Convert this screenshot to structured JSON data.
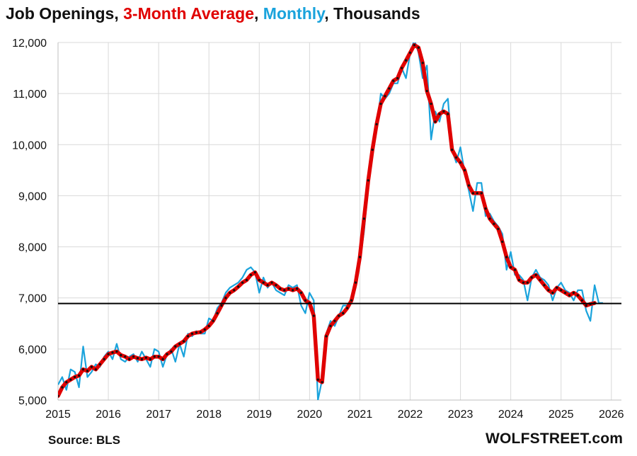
{
  "title": {
    "part1": "Job Openings, ",
    "part2": "3-Month Average",
    "part3": ", ",
    "part4": "Monthly",
    "part5": ", Thousands"
  },
  "footer": {
    "source": "Source: BLS",
    "brand": "WOLFSTREET.com"
  },
  "colors": {
    "average": "#e00000",
    "monthly": "#1aa3dc",
    "reference_line": "#000000",
    "grid": "#d9d9d9"
  },
  "chart_data": {
    "type": "line",
    "title": "Job Openings, 3-Month Average, Monthly, Thousands",
    "xlabel": "",
    "ylabel": "",
    "xlim": [
      2015,
      2026.2
    ],
    "ylim": [
      5000,
      12000
    ],
    "y_ticks": [
      5000,
      6000,
      7000,
      8000,
      9000,
      10000,
      11000,
      12000
    ],
    "y_tick_labels": [
      "5,000",
      "6,000",
      "7,000",
      "8,000",
      "9,000",
      "10,000",
      "11,000",
      "12,000"
    ],
    "x_ticks": [
      2015,
      2016,
      2017,
      2018,
      2019,
      2020,
      2021,
      2022,
      2023,
      2024,
      2025,
      2026
    ],
    "x_tick_labels": [
      "2015",
      "2016",
      "2017",
      "2018",
      "2019",
      "2020",
      "2021",
      "2022",
      "2023",
      "2024",
      "2025",
      "2026"
    ],
    "grid": true,
    "legend": "in title",
    "reference_line": {
      "y": 6890
    },
    "series": [
      {
        "name": "Monthly",
        "color": "#1aa3dc",
        "x_start": 2015.0,
        "x_step": 0.08333,
        "values": [
          5300,
          5450,
          5200,
          5600,
          5550,
          5250,
          6050,
          5450,
          5550,
          5700,
          5650,
          5850,
          5950,
          5800,
          6100,
          5800,
          5750,
          5850,
          5900,
          5750,
          5950,
          5800,
          5650,
          6000,
          5950,
          5650,
          5900,
          6000,
          5750,
          6100,
          5850,
          6300,
          6250,
          6350,
          6300,
          6300,
          6600,
          6550,
          6800,
          6900,
          7100,
          7200,
          7250,
          7300,
          7400,
          7550,
          7600,
          7500,
          7100,
          7400,
          7200,
          7300,
          7150,
          7100,
          7050,
          7250,
          7200,
          7250,
          6850,
          6700,
          7100,
          6950,
          5000,
          5400,
          6300,
          6550,
          6450,
          6650,
          6850,
          6850,
          6900,
          7200,
          7700,
          8300,
          9200,
          10000,
          10300,
          11000,
          10900,
          11000,
          11200,
          11200,
          11500,
          11300,
          11800,
          12050,
          11800,
          11300,
          11550,
          10100,
          10650,
          10450,
          10800,
          10900,
          9900,
          9650,
          9950,
          9450,
          9100,
          8700,
          9250,
          9250,
          8600,
          8650,
          8500,
          8400,
          8250,
          7550,
          7900,
          7450,
          7450,
          7350,
          6950,
          7400,
          7550,
          7400,
          7350,
          7250,
          6950,
          7200,
          7300,
          7150,
          7100,
          6950,
          7150,
          7150,
          6750,
          6550,
          7250,
          6900,
          6900
        ]
      },
      {
        "name": "3-Month Average",
        "color": "#e00000",
        "x_start": 2015.0,
        "x_step": 0.08333,
        "values": [
          5080,
          5250,
          5350,
          5400,
          5450,
          5480,
          5600,
          5570,
          5650,
          5600,
          5700,
          5800,
          5900,
          5930,
          5950,
          5880,
          5850,
          5800,
          5850,
          5820,
          5800,
          5830,
          5800,
          5850,
          5850,
          5800,
          5900,
          5950,
          6050,
          6100,
          6150,
          6250,
          6300,
          6320,
          6330,
          6380,
          6450,
          6550,
          6700,
          6850,
          7000,
          7100,
          7150,
          7220,
          7300,
          7350,
          7450,
          7500,
          7350,
          7300,
          7250,
          7300,
          7250,
          7180,
          7150,
          7180,
          7150,
          7180,
          7100,
          6950,
          6900,
          6650,
          5400,
          5350,
          6250,
          6450,
          6550,
          6650,
          6700,
          6800,
          6950,
          7300,
          7800,
          8550,
          9300,
          9900,
          10400,
          10800,
          10950,
          11100,
          11250,
          11300,
          11500,
          11650,
          11800,
          11950,
          11900,
          11600,
          11050,
          10800,
          10450,
          10600,
          10650,
          10600,
          9900,
          9750,
          9650,
          9500,
          9200,
          9050,
          9050,
          9050,
          8750,
          8550,
          8450,
          8350,
          8100,
          7800,
          7600,
          7550,
          7350,
          7300,
          7300,
          7400,
          7450,
          7350,
          7250,
          7150,
          7100,
          7200,
          7150,
          7100,
          7050,
          7100,
          7050,
          6950,
          6850,
          6880,
          6900
        ]
      }
    ]
  }
}
